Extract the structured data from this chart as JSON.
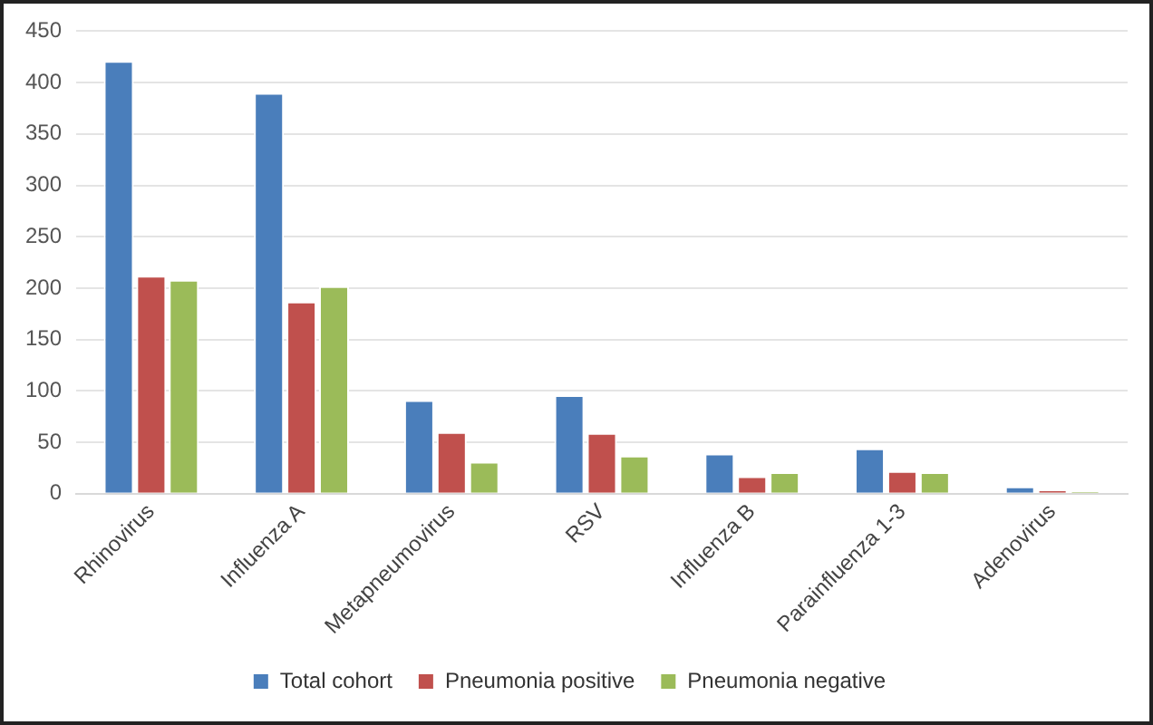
{
  "chart_data": {
    "type": "bar",
    "categories": [
      "Rhinovirus",
      "Influenza A",
      "Metapneumovirus",
      "RSV",
      "Influenza B",
      "Parainfluenza 1-3",
      "Adenovirus"
    ],
    "series": [
      {
        "name": "Total cohort",
        "color": "#4a7ebb",
        "values": [
          421,
          390,
          91,
          96,
          39,
          44,
          7
        ]
      },
      {
        "name": "Pneumonia positive",
        "color": "#c0504d",
        "values": [
          212,
          187,
          60,
          59,
          17,
          22,
          4
        ]
      },
      {
        "name": "Pneumonia negative",
        "color": "#9bbb59",
        "values": [
          208,
          202,
          31,
          37,
          21,
          21,
          2
        ]
      }
    ],
    "ylim": [
      0,
      450
    ],
    "yticks": [
      0,
      50,
      100,
      150,
      200,
      250,
      300,
      350,
      400,
      450
    ],
    "grid": "y",
    "legend": "bottom"
  }
}
